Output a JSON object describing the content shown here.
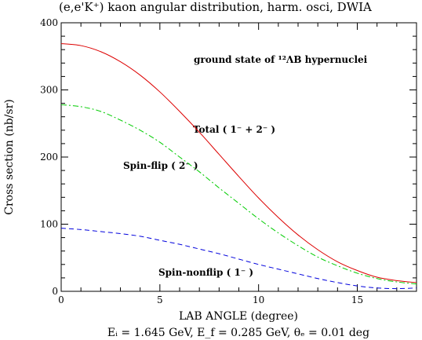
{
  "chart_data": {
    "type": "line",
    "title": "(e,e'K⁺) kaon  angular distribution, harm. osci, DWIA",
    "xlabel": "LAB ANGLE (degree)",
    "ylabel": "Cross section (nb/sr)",
    "xlim": [
      0,
      18
    ],
    "ylim": [
      0,
      400
    ],
    "x_ticks": [
      0,
      5,
      10,
      15
    ],
    "y_ticks": [
      0,
      100,
      200,
      300,
      400
    ],
    "caption": "Eᵢ = 1.645 GeV, E_f = 0.285 GeV, θₑ = 0.01 deg",
    "annotation": "ground state of ¹²ΛB hypernuclei",
    "grid": false,
    "series": [
      {
        "name": "Total ( 1⁻ + 2⁻ )",
        "color": "#dd0000",
        "style": "solid",
        "x": [
          0,
          1,
          2,
          3,
          4,
          5,
          6,
          7,
          8,
          9,
          10,
          11,
          12,
          13,
          14,
          15,
          16,
          17,
          18
        ],
        "y": [
          369,
          366,
          357,
          342,
          322,
          297,
          268,
          237,
          204,
          171,
          139,
          110,
          84,
          62,
          44,
          31,
          21,
          16,
          13
        ]
      },
      {
        "name": "Spin-flip ( 2⁻ )",
        "color": "#00cc00",
        "style": "dashdot",
        "x": [
          0,
          1,
          2,
          3,
          4,
          5,
          6,
          7,
          8,
          9,
          10,
          11,
          12,
          13,
          14,
          15,
          16,
          17,
          18
        ],
        "y": [
          278,
          275,
          268,
          255,
          240,
          222,
          200,
          178,
          154,
          131,
          108,
          87,
          68,
          51,
          38,
          27,
          19,
          14,
          11
        ]
      },
      {
        "name": "Spin-nonflip ( 1⁻ )",
        "color": "#0000dd",
        "style": "dashed",
        "x": [
          0,
          1,
          2,
          3,
          4,
          5,
          6,
          7,
          8,
          9,
          10,
          11,
          12,
          13,
          14,
          15,
          16,
          17,
          18
        ],
        "y": [
          94,
          92,
          89,
          86,
          82,
          76,
          70,
          63,
          56,
          48,
          40,
          33,
          26,
          19,
          13,
          8,
          5,
          4,
          5
        ]
      }
    ]
  }
}
